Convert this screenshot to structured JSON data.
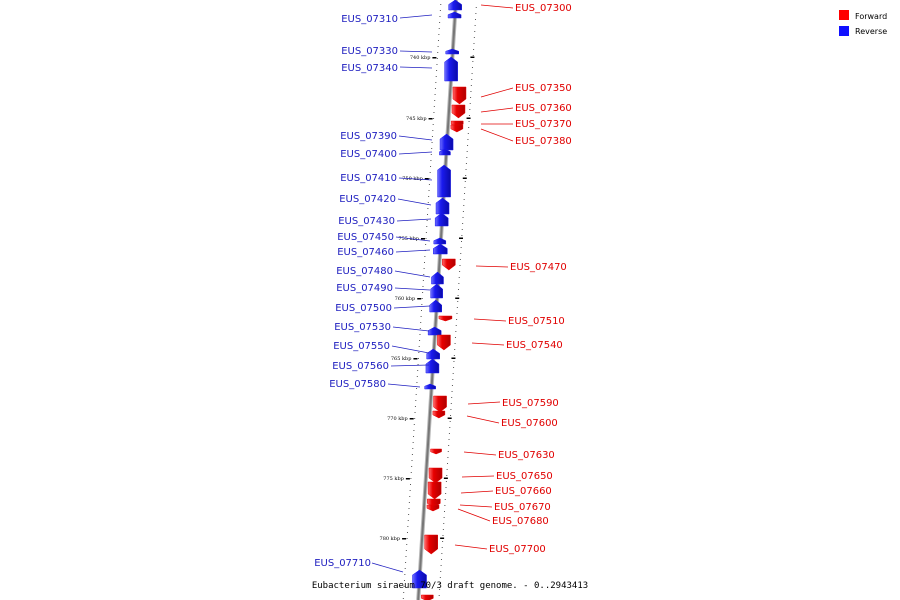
{
  "caption": "Eubacterium siraeum 70/3 draft genome. - 0..2943413",
  "legend": {
    "forward_label": "Forward",
    "reverse_label": "Reverse",
    "forward_color": "#ff0000",
    "reverse_color": "#1010ff"
  },
  "colors": {
    "forward": "#e80000",
    "reverse": "#1a1aee",
    "forward_line": "#e00000",
    "reverse_line": "#2020c0",
    "backbone": "#888888"
  },
  "ticks": [
    "740 kbp",
    "745 kbp",
    "750 kbp",
    "755 kbp",
    "760 kbp",
    "765 kbp",
    "770 kbp",
    "775 kbp",
    "780 kbp"
  ],
  "reverse_genes": [
    "EUS_07310",
    "EUS_07330",
    "EUS_07340",
    "EUS_07390",
    "EUS_07400",
    "EUS_07410",
    "EUS_07420",
    "EUS_07430",
    "EUS_07450",
    "EUS_07460",
    "EUS_07480",
    "EUS_07490",
    "EUS_07500",
    "EUS_07530",
    "EUS_07550",
    "EUS_07560",
    "EUS_07580",
    "EUS_07710"
  ],
  "forward_genes": [
    "EUS_07300",
    "EUS_07350",
    "EUS_07360",
    "EUS_07370",
    "EUS_07380",
    "EUS_07470",
    "EUS_07510",
    "EUS_07540",
    "EUS_07590",
    "EUS_07600",
    "EUS_07630",
    "EUS_07650",
    "EUS_07660",
    "EUS_07670",
    "EUS_07680",
    "EUS_07700"
  ]
}
